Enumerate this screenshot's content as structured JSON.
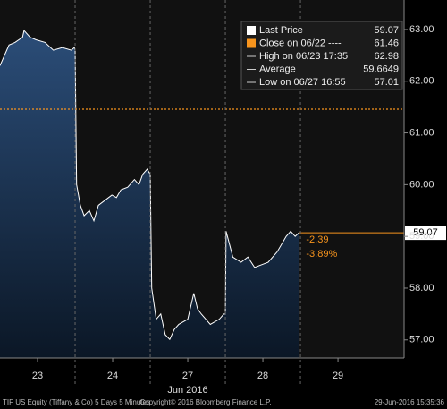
{
  "chart_data": {
    "type": "area-line",
    "title": "TIF US Equity (Tiffany & Co) 5 Days 5 Minutes",
    "copyright": "Copyright© 2016 Bloomberg Finance L.P.",
    "timestamp": "29-Jun-2016 15:35:36",
    "x_label": "Jun 2016",
    "xlim": [
      0,
      5.38
    ],
    "xticks": [
      {
        "value": 0.5,
        "label": "23"
      },
      {
        "value": 1.5,
        "label": "24"
      },
      {
        "value": 2.5,
        "label": "27"
      },
      {
        "value": 3.5,
        "label": "28"
      },
      {
        "value": 4.5,
        "label": "29"
      }
    ],
    "ylim": [
      56.65,
      63.57
    ],
    "yticks": [
      {
        "value": 57,
        "label": "57.00"
      },
      {
        "value": 58,
        "label": "58.00"
      },
      {
        "value": 59,
        "label": "59.00"
      },
      {
        "value": 60,
        "label": "60.00"
      },
      {
        "value": 61,
        "label": "61.00"
      },
      {
        "value": 62,
        "label": "62.00"
      },
      {
        "value": 63,
        "label": "63.00"
      }
    ],
    "series": [
      {
        "name": "Last Price",
        "color": "#ffffff",
        "x": [
          0,
          0.12,
          0.2,
          0.3,
          0.32,
          0.4,
          0.48,
          0.6,
          0.71,
          0.83,
          0.95,
          0.99,
          1.0,
          1.02,
          1.07,
          1.12,
          1.19,
          1.25,
          1.31,
          1.4,
          1.49,
          1.55,
          1.61,
          1.7,
          1.79,
          1.85,
          1.9,
          1.96,
          2.0,
          2.02,
          2.08,
          2.14,
          2.2,
          2.26,
          2.32,
          2.38,
          2.5,
          2.58,
          2.63,
          2.68,
          2.8,
          2.92,
          2.98,
          3.0,
          3.01,
          3.1,
          3.21,
          3.3,
          3.39,
          3.48,
          3.57,
          3.69,
          3.81,
          3.87,
          3.93,
          3.98
        ],
        "values": [
          62.3,
          62.7,
          62.75,
          62.85,
          62.98,
          62.85,
          62.8,
          62.75,
          62.6,
          62.65,
          62.6,
          62.65,
          62.6,
          60.0,
          59.6,
          59.4,
          59.5,
          59.3,
          59.6,
          59.7,
          59.8,
          59.75,
          59.9,
          59.95,
          60.1,
          60.0,
          60.2,
          60.3,
          60.2,
          58.0,
          57.4,
          57.5,
          57.1,
          57.01,
          57.2,
          57.3,
          57.4,
          57.9,
          57.6,
          57.5,
          57.3,
          57.4,
          57.5,
          57.5,
          59.1,
          58.6,
          58.5,
          58.6,
          58.4,
          58.45,
          58.5,
          58.7,
          59.0,
          59.1,
          59.0,
          59.07
        ],
        "last_value": 59.07
      }
    ],
    "legend": [
      {
        "label": "Last Price",
        "value": 59.07,
        "color": "#ffffff"
      },
      {
        "label": "Close on 06/22 ----",
        "value": 61.46,
        "color": "#f7941d"
      },
      {
        "label": "High on 06/23 17:35",
        "value": 62.98
      },
      {
        "label": "Average",
        "value": 59.6649
      },
      {
        "label": "Low on 06/27 16:55",
        "value": 57.01
      }
    ],
    "change": {
      "value": -2.39,
      "percent": {
        "value": -3.89,
        "label": "-3.89%"
      },
      "color": "#f7941d"
    }
  }
}
